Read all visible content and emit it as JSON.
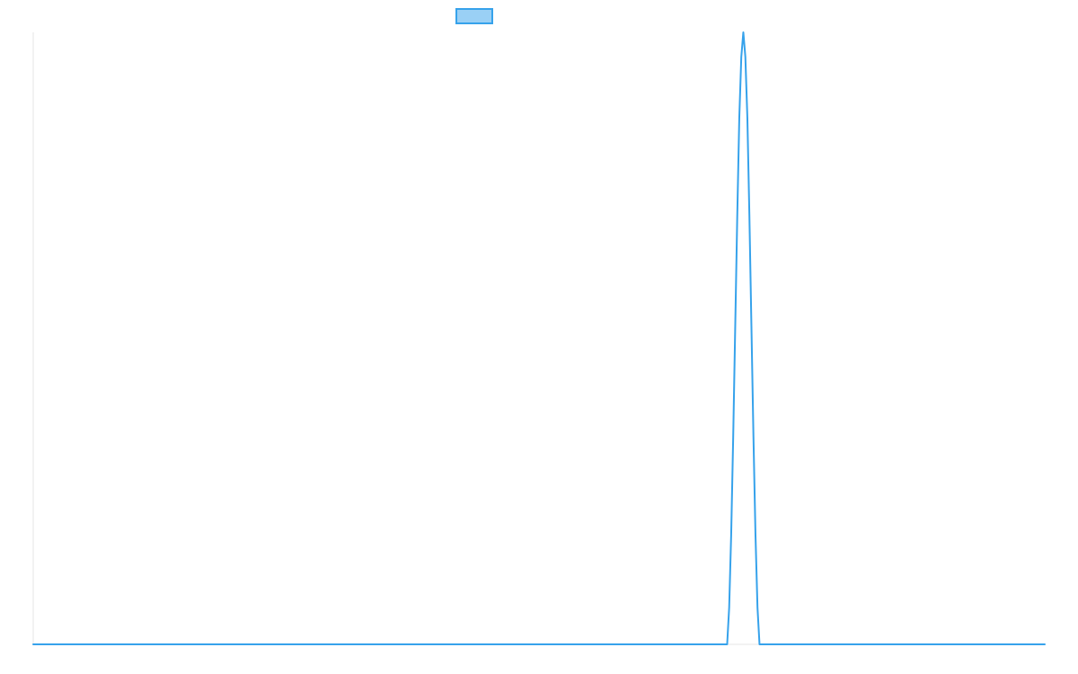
{
  "chart_data": {
    "type": "line",
    "title": "",
    "xlabel": "",
    "ylabel": "",
    "xlim": [
      0,
      100
    ],
    "ylim": [
      0,
      1
    ],
    "grid": false,
    "legend": "top-center",
    "series": [
      {
        "name": "",
        "color": "#36a2eb",
        "fill_color": "#9ad0f5",
        "points": [
          [
            0,
            0
          ],
          [
            68.6,
            0
          ],
          [
            68.8,
            0.06
          ],
          [
            69.0,
            0.18
          ],
          [
            69.2,
            0.34
          ],
          [
            69.4,
            0.52
          ],
          [
            69.6,
            0.7
          ],
          [
            69.8,
            0.86
          ],
          [
            70.0,
            0.96
          ],
          [
            70.2,
            1.0
          ],
          [
            70.4,
            0.96
          ],
          [
            70.6,
            0.86
          ],
          [
            70.8,
            0.7
          ],
          [
            71.0,
            0.52
          ],
          [
            71.2,
            0.34
          ],
          [
            71.4,
            0.18
          ],
          [
            71.6,
            0.06
          ],
          [
            71.8,
            0
          ],
          [
            100,
            0
          ]
        ]
      }
    ]
  }
}
